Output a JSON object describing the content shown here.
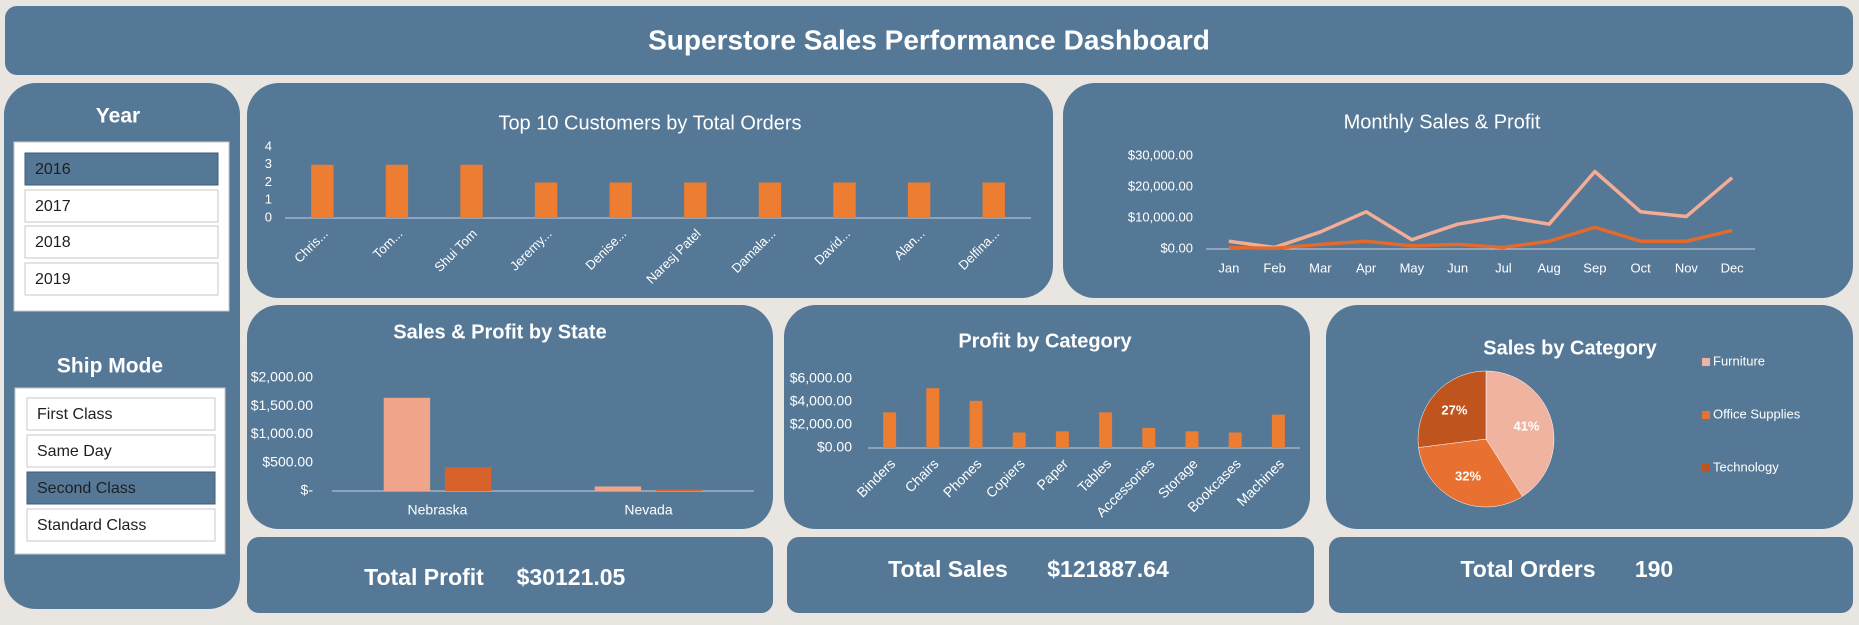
{
  "title": "Superstore Sales Performance Dashboard",
  "slicers": [
    {
      "title": "Year",
      "items": [
        "2016",
        "2017",
        "2018",
        "2019"
      ],
      "selected": "2016"
    },
    {
      "title": "Ship Mode",
      "items": [
        "First Class",
        "Same Day",
        "Second Class",
        "Standard Class"
      ],
      "selected": "Second Class"
    }
  ],
  "kpis": [
    {
      "label": "Total Profit",
      "value": "$30121.05"
    },
    {
      "label": "Total Sales",
      "value": "$121887.64"
    },
    {
      "label": "Total Orders",
      "value": "190"
    }
  ],
  "chart_data": [
    {
      "type": "bar",
      "title": "Top 10 Customers by Total Orders",
      "categories": [
        "Chris...",
        "Tom...",
        "Shui Tom",
        "Jeremy...",
        "Denise...",
        "Naresj Patel",
        "Damala...",
        "David...",
        "Alan...",
        "Delfina..."
      ],
      "values": [
        3,
        3,
        3,
        2,
        2,
        2,
        2,
        2,
        2,
        2
      ],
      "color": "#ed7d31",
      "ylim": [
        0,
        4
      ],
      "yticks": [
        0,
        1,
        2,
        3,
        4
      ]
    },
    {
      "type": "line",
      "title": "Monthly Sales & Profit",
      "categories": [
        "Jan",
        "Feb",
        "Mar",
        "Apr",
        "May",
        "Jun",
        "Jul",
        "Aug",
        "Sep",
        "Oct",
        "Nov",
        "Dec"
      ],
      "series": [
        {
          "color": "#f2ad96",
          "values": [
            2500,
            500,
            5500,
            12000,
            3000,
            8000,
            10500,
            8000,
            25000,
            12000,
            10500,
            23000
          ]
        },
        {
          "color": "#e26a2c",
          "values": [
            500,
            200,
            1500,
            2500,
            1000,
            1500,
            500,
            2500,
            7000,
            2500,
            2500,
            6000
          ]
        }
      ],
      "ylim": [
        0,
        30000
      ],
      "yticks": [
        {
          "value": 0,
          "label": "$0.00"
        },
        {
          "value": 10000,
          "label": "$10,000.00"
        },
        {
          "value": 20000,
          "label": "$20,000.00"
        },
        {
          "value": 30000,
          "label": "$30,000.00"
        }
      ]
    },
    {
      "type": "bar",
      "title": "Sales & Profit by State",
      "categories": [
        "Nebraska",
        "Nevada"
      ],
      "series": [
        {
          "color": "#f0a58a",
          "values": [
            1650,
            80
          ]
        },
        {
          "color": "#d9622b",
          "values": [
            420,
            30
          ]
        }
      ],
      "ylim": [
        0,
        2000
      ],
      "yticks": [
        {
          "value": 0,
          "label": "$-"
        },
        {
          "value": 500,
          "label": "$500.00"
        },
        {
          "value": 1000,
          "label": "$1,000.00"
        },
        {
          "value": 1500,
          "label": "$1,500.00"
        },
        {
          "value": 2000,
          "label": "$2,000.00"
        }
      ]
    },
    {
      "type": "bar",
      "title": "Profit by Category",
      "categories": [
        "Binders",
        "Chairs",
        "Phones",
        "Copiers",
        "Paper",
        "Tables",
        "Accessories",
        "Storage",
        "Bookcases",
        "Machines"
      ],
      "values": [
        3100,
        5200,
        4100,
        1350,
        1450,
        3100,
        1750,
        1450,
        1350,
        2900
      ],
      "color": "#ed7d31",
      "ylim": [
        0,
        6000
      ],
      "yticks": [
        {
          "value": 0,
          "label": "$0.00"
        },
        {
          "value": 2000,
          "label": "$2,000.00"
        },
        {
          "value": 4000,
          "label": "$4,000.00"
        },
        {
          "value": 6000,
          "label": "$6,000.00"
        }
      ]
    },
    {
      "type": "pie",
      "title": "Sales by Category",
      "categories": [
        "Furniture",
        "Office Supplies",
        "Technology"
      ],
      "values": [
        41,
        32,
        27
      ],
      "value_labels": [
        "41%",
        "32%",
        "27%"
      ],
      "colors": [
        "#f0b3a0",
        "#e87132",
        "#c0541f"
      ],
      "legend": "right"
    }
  ]
}
